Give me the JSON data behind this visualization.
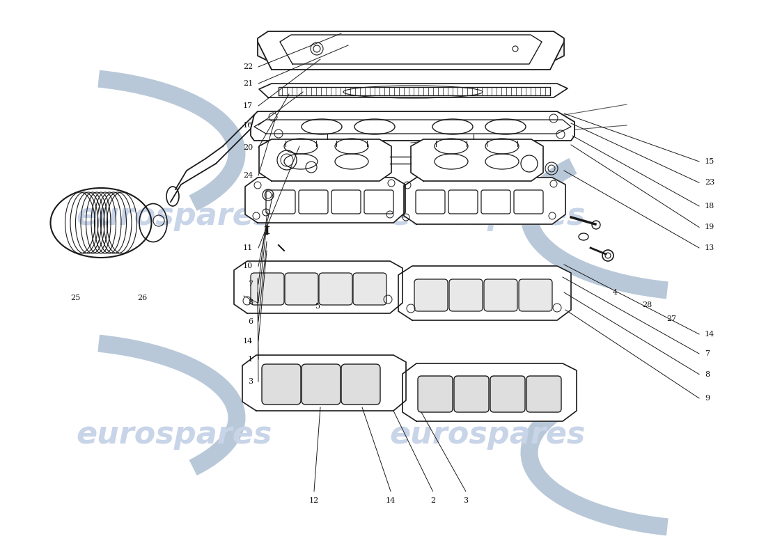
{
  "bg_color": "#ffffff",
  "line_color": "#1a1a1a",
  "label_color": "#111111",
  "wm_color": "#c8d4e8",
  "figure_width": 11.0,
  "figure_height": 8.0,
  "dpi": 100,
  "labels_left": [
    {
      "num": "22",
      "nx": 0.33,
      "ny": 0.88
    },
    {
      "num": "21",
      "nx": 0.33,
      "ny": 0.85
    },
    {
      "num": "17",
      "nx": 0.33,
      "ny": 0.81
    },
    {
      "num": "16",
      "nx": 0.33,
      "ny": 0.775
    },
    {
      "num": "20",
      "nx": 0.33,
      "ny": 0.735
    },
    {
      "num": "24",
      "nx": 0.33,
      "ny": 0.685
    },
    {
      "num": "11",
      "nx": 0.33,
      "ny": 0.555
    },
    {
      "num": "10",
      "nx": 0.33,
      "ny": 0.522
    },
    {
      "num": "7",
      "nx": 0.33,
      "ny": 0.49
    },
    {
      "num": "8",
      "nx": 0.33,
      "ny": 0.457
    },
    {
      "num": "6",
      "nx": 0.33,
      "ny": 0.423
    },
    {
      "num": "14",
      "nx": 0.33,
      "ny": 0.388
    },
    {
      "num": "1",
      "nx": 0.33,
      "ny": 0.355
    },
    {
      "num": "3",
      "nx": 0.33,
      "ny": 0.315
    }
  ],
  "labels_right": [
    {
      "num": "15",
      "nx": 0.92,
      "ny": 0.71
    },
    {
      "num": "23",
      "nx": 0.92,
      "ny": 0.672
    },
    {
      "num": "18",
      "nx": 0.92,
      "ny": 0.63
    },
    {
      "num": "19",
      "nx": 0.92,
      "ny": 0.592
    },
    {
      "num": "13",
      "nx": 0.92,
      "ny": 0.555
    },
    {
      "num": "14",
      "nx": 0.92,
      "ny": 0.4
    },
    {
      "num": "7",
      "nx": 0.92,
      "ny": 0.365
    },
    {
      "num": "8",
      "nx": 0.92,
      "ny": 0.328
    },
    {
      "num": "9",
      "nx": 0.92,
      "ny": 0.285
    }
  ],
  "labels_bottom": [
    {
      "num": "12",
      "nx": 0.41,
      "ny": 0.108
    },
    {
      "num": "14",
      "nx": 0.51,
      "ny": 0.108
    },
    {
      "num": "2",
      "nx": 0.565,
      "ny": 0.108
    },
    {
      "num": "3",
      "nx": 0.608,
      "ny": 0.108
    }
  ],
  "labels_misc": [
    {
      "num": "5",
      "nx": 0.418,
      "ny": 0.45
    },
    {
      "num": "4",
      "nx": 0.8,
      "ny": 0.475
    },
    {
      "num": "28",
      "nx": 0.838,
      "ny": 0.452
    },
    {
      "num": "27",
      "nx": 0.87,
      "ny": 0.428
    },
    {
      "num": "25",
      "nx": 0.105,
      "ny": 0.465
    },
    {
      "num": "26",
      "nx": 0.192,
      "ny": 0.465
    }
  ]
}
